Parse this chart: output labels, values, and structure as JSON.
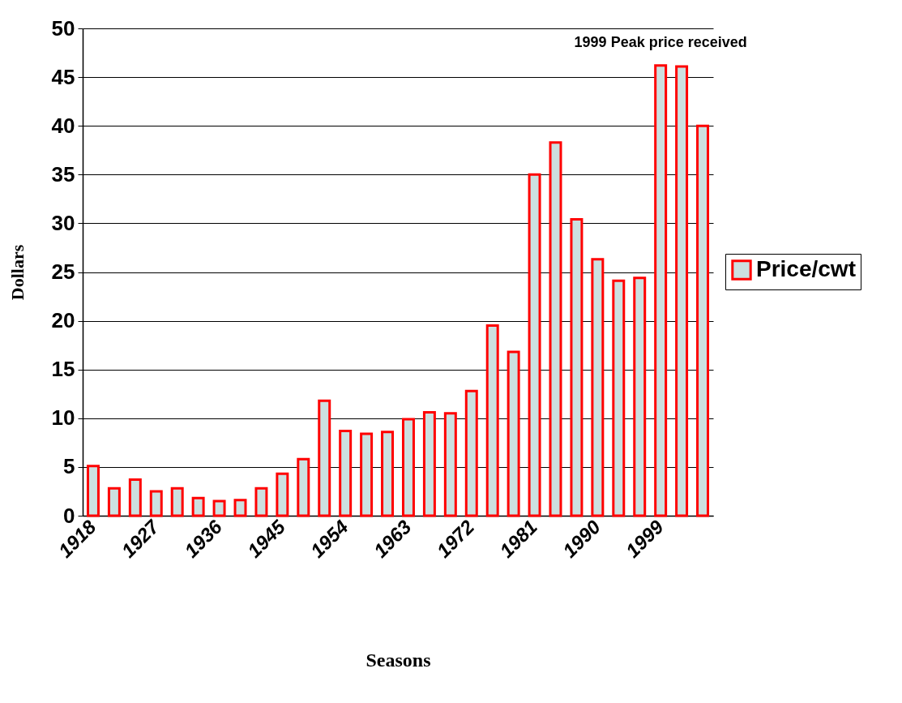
{
  "chart_data": {
    "type": "bar",
    "xlabel": "Seasons",
    "ylabel": "Dollars",
    "categories": [
      "1918",
      null,
      null,
      "1927",
      null,
      null,
      "1936",
      null,
      null,
      "1945",
      null,
      null,
      "1954",
      null,
      null,
      "1963",
      null,
      null,
      "1972",
      null,
      null,
      "1981",
      null,
      null,
      "1990",
      null,
      null,
      "1999",
      null,
      null
    ],
    "series": [
      {
        "name": "Price/cwt",
        "color": "#cce0e0",
        "values": [
          5.1,
          2.8,
          3.7,
          2.5,
          2.8,
          1.8,
          1.5,
          1.6,
          2.8,
          4.3,
          5.8,
          11.8,
          8.7,
          8.4,
          8.6,
          9.9,
          10.6,
          10.5,
          12.8,
          19.5,
          16.8,
          35.0,
          38.3,
          30.4,
          26.3,
          24.1,
          24.4,
          46.2,
          46.1,
          40.0
        ]
      }
    ],
    "ylim": [
      0,
      50
    ],
    "yticks": [
      0,
      5,
      10,
      15,
      20,
      25,
      30,
      35,
      40,
      45,
      50
    ],
    "grid": "y",
    "legend": "right",
    "annotations": [
      {
        "text": "1999 Peak price received",
        "x": "1999",
        "y": 46.2
      }
    ]
  }
}
